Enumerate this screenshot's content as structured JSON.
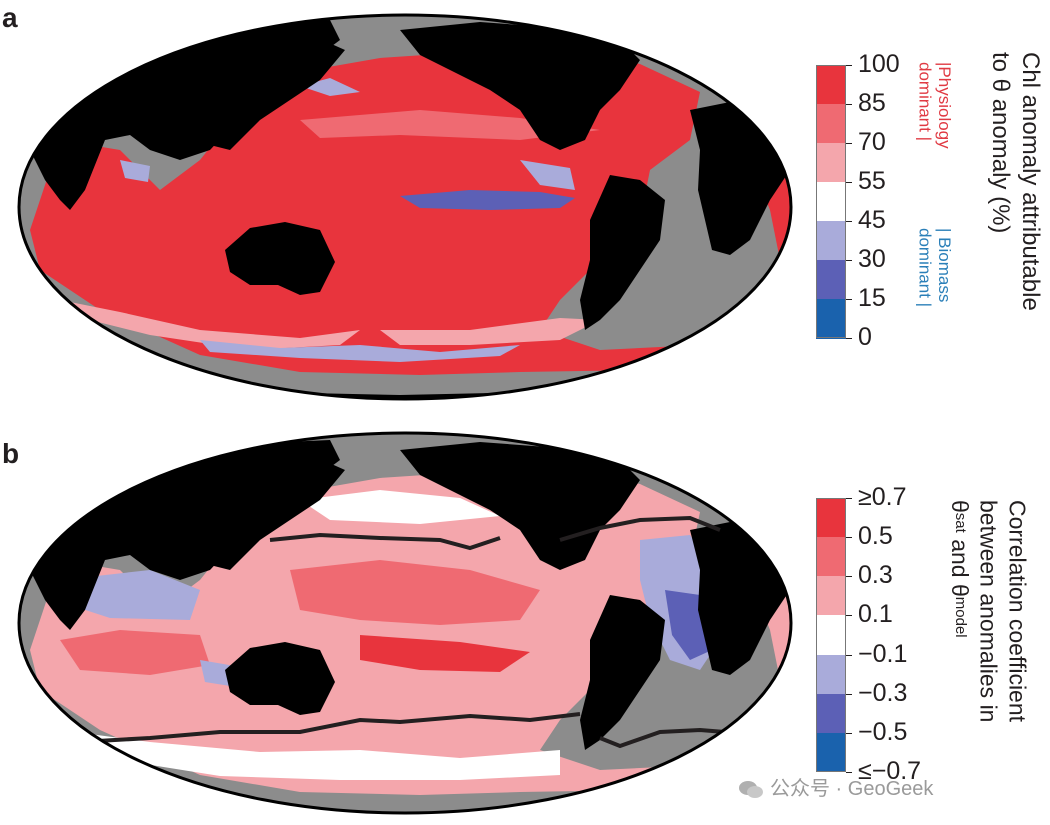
{
  "panel_a": {
    "letter": "a",
    "colorbar": {
      "ticks": [
        "100",
        "85",
        "70",
        "55",
        "45",
        "30",
        "15",
        "0"
      ],
      "title_lines": [
        "Chl anomaly attributable",
        "to θ anomaly (%)"
      ],
      "label_physiology": [
        "|Physiology",
        "dominant |"
      ],
      "label_biomass": [
        "| Biomass",
        "dominant |"
      ],
      "colors": [
        "#e8343d",
        "#ef6a72",
        "#f4a6ac",
        "#ffffff",
        "#a9abda",
        "#5c60b6",
        "#1a62ad"
      ]
    }
  },
  "panel_b": {
    "letter": "b",
    "colorbar": {
      "ticks": [
        "≥0.7",
        "0.5",
        "0.3",
        "0.1",
        "−0.1",
        "−0.3",
        "−0.5",
        "≤−0.7"
      ],
      "title_lines": [
        "Correlation coefficient",
        "between anomalies in",
        "θsat and θmodel"
      ],
      "colors": [
        "#e8343d",
        "#ef6a72",
        "#f4a6ac",
        "#ffffff",
        "#a9abda",
        "#5c60b6",
        "#1a62ad"
      ]
    }
  },
  "map_colors": {
    "land": "#000000",
    "nodata": "#8c8c8c",
    "contour": "#231f20"
  },
  "watermark": {
    "text": "公众号 · GeoGeek"
  }
}
